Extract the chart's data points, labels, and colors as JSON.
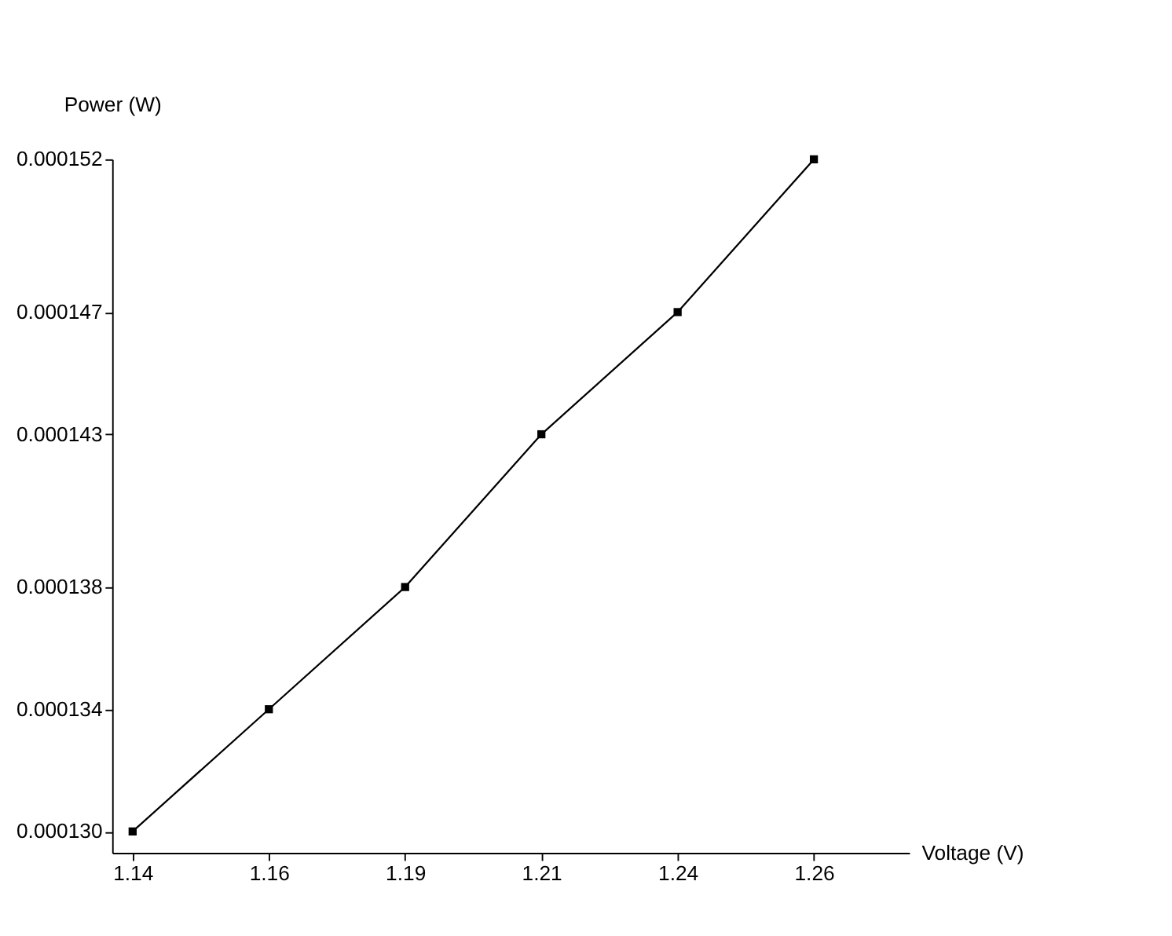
{
  "chart_data": {
    "type": "line",
    "xlabel": "Voltage (V)",
    "ylabel": "Power (W)",
    "categories": [
      "1.14",
      "1.16",
      "1.19",
      "1.21",
      "1.24",
      "1.26"
    ],
    "series": [
      {
        "color": "#000000",
        "values": [
          0.00013,
          0.000134,
          0.000138,
          0.000143,
          0.000147,
          0.000152
        ]
      }
    ],
    "ylim": [
      0.0001293,
      0.000152
    ],
    "yticks": [
      {
        "value": 0.00013,
        "label": "0.000130"
      },
      0.000134,
      0.000138,
      0.000143,
      0.000147,
      0.000152
    ],
    "grid": false,
    "legend": false,
    "marker": "square",
    "line_style": "solid"
  }
}
